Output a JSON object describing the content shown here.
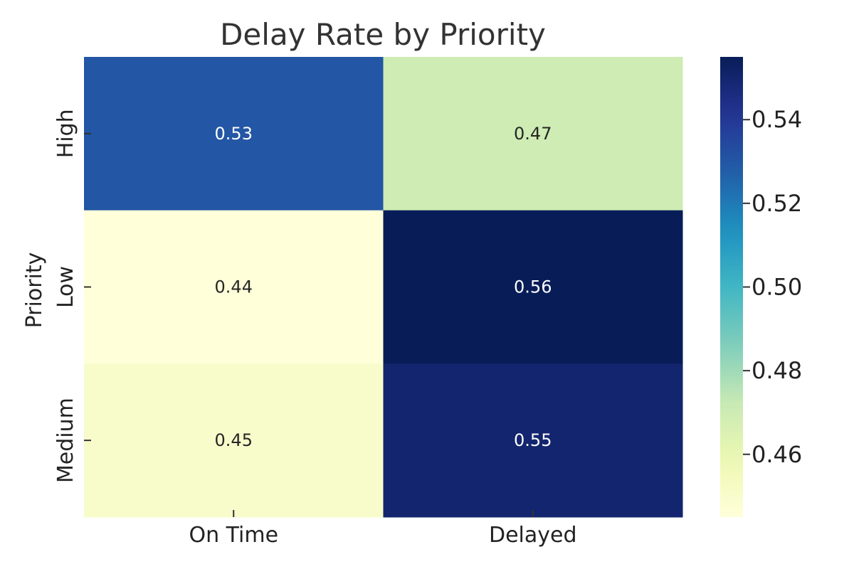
{
  "chart_data": {
    "type": "heatmap",
    "title": "Delay Rate by Priority",
    "xlabel": "",
    "ylabel": "Priority",
    "x_categories": [
      "On Time",
      "Delayed"
    ],
    "y_categories": [
      "High",
      "Low",
      "Medium"
    ],
    "values": [
      [
        0.53,
        0.47
      ],
      [
        0.44,
        0.56
      ],
      [
        0.45,
        0.55
      ]
    ],
    "value_labels": [
      [
        "0.53",
        "0.47"
      ],
      [
        "0.44",
        "0.56"
      ],
      [
        "0.45",
        "0.55"
      ]
    ],
    "colormap": "YlGnBu",
    "colorbar": {
      "range": [
        0.445,
        0.555
      ],
      "ticks": [
        0.46,
        0.48,
        0.5,
        0.52,
        0.54
      ],
      "tick_labels": [
        "0.46",
        "0.48",
        "0.50",
        "0.52",
        "0.54"
      ]
    },
    "grid": false,
    "legend": "colorbar-right"
  }
}
